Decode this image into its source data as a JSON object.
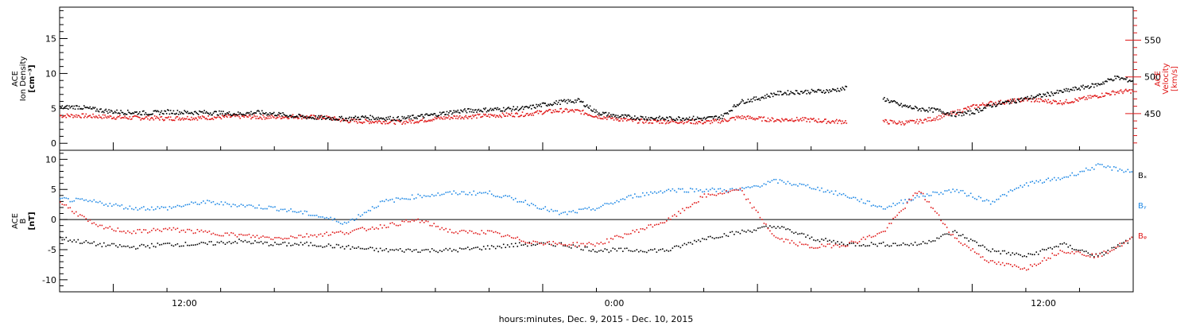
{
  "colors": {
    "bx": "#000000",
    "by": "#1e88e5",
    "bz": "#e01818",
    "density": "#000000",
    "velocity": "#e01818",
    "axes": "#000000"
  },
  "xlabel": "hours:minutes, Dec.  9, 2015 - Dec. 10, 2015",
  "x_tick_labels": [
    "12:00",
    "0:00",
    "12:00"
  ],
  "chart_data": [
    {
      "type": "scatter",
      "panel": "top",
      "left_ylabel": {
        "source": "ACE",
        "quantity": "Ion Density",
        "unit": "[cm⁻³]"
      },
      "right_ylabel": {
        "source": "ACE",
        "quantity": "Velocity",
        "unit": "[km/s]"
      },
      "x_range_hours": [
        0,
        60
      ],
      "left_ylim": [
        -1,
        19.5
      ],
      "left_ticks": [
        0,
        5,
        10,
        15
      ],
      "right_ylim": [
        400,
        595
      ],
      "right_ticks": [
        450,
        500,
        550
      ],
      "series": [
        {
          "name": "Density",
          "axis": "left",
          "color": "#000000",
          "x": [
            0,
            1,
            2,
            3,
            4,
            5,
            6,
            7,
            8,
            9,
            10,
            11,
            12,
            13,
            14,
            15,
            16,
            17,
            18,
            19,
            20,
            21,
            22,
            23,
            24,
            25,
            26,
            27,
            28,
            29,
            30,
            31,
            32,
            33,
            34,
            35,
            36,
            37,
            38,
            39,
            40,
            41,
            42,
            43,
            44,
            45,
            46,
            47,
            48,
            49,
            50,
            51,
            52,
            53,
            54,
            55,
            56,
            57,
            58,
            59,
            60
          ],
          "y": [
            5.2,
            5.3,
            4.9,
            4.6,
            4.5,
            4.4,
            4.6,
            4.5,
            4.5,
            4.4,
            4.3,
            4.5,
            4.3,
            4.0,
            3.8,
            3.7,
            3.6,
            3.8,
            3.7,
            3.6,
            3.9,
            4.2,
            4.6,
            4.8,
            4.9,
            5.0,
            5.1,
            5.6,
            6.0,
            6.2,
            4.5,
            4.0,
            3.8,
            3.7,
            3.6,
            3.7,
            3.6,
            3.9,
            6.0,
            6.5,
            7.2,
            7.4,
            7.5,
            7.6,
            8.0,
            null,
            6.5,
            5.5,
            5.0,
            4.8,
            4.2,
            4.5,
            5.5,
            6.0,
            6.5,
            7.0,
            7.5,
            8.0,
            8.5,
            9.5,
            9.0
          ]
        },
        {
          "name": "Velocity",
          "axis": "right",
          "color": "#e01818",
          "x": [
            0,
            1,
            2,
            3,
            4,
            5,
            6,
            7,
            8,
            9,
            10,
            11,
            12,
            13,
            14,
            15,
            16,
            17,
            18,
            19,
            20,
            21,
            22,
            23,
            24,
            25,
            26,
            27,
            28,
            29,
            30,
            31,
            32,
            33,
            34,
            35,
            36,
            37,
            38,
            39,
            40,
            41,
            42,
            43,
            44,
            45,
            46,
            47,
            48,
            49,
            50,
            51,
            52,
            53,
            54,
            55,
            56,
            57,
            58,
            59,
            60
          ],
          "y": [
            448,
            448,
            447,
            446,
            445,
            445,
            444,
            445,
            445,
            446,
            447,
            446,
            446,
            447,
            446,
            445,
            441,
            440,
            440,
            439,
            441,
            444,
            446,
            447,
            448,
            449,
            450,
            453,
            455,
            454,
            447,
            444,
            441,
            440,
            440,
            440,
            439,
            441,
            446,
            444,
            442,
            443,
            442,
            440,
            440,
            null,
            440,
            438,
            440,
            445,
            452,
            460,
            465,
            467,
            470,
            468,
            466,
            470,
            475,
            480,
            482
          ]
        }
      ]
    },
    {
      "type": "scatter",
      "panel": "bottom",
      "left_ylabel": {
        "source": "ACE",
        "quantity": "B",
        "unit": "[nT]"
      },
      "x_range_hours": [
        0,
        60
      ],
      "ylim": [
        -12,
        11.5
      ],
      "ticks": [
        -10,
        -5,
        0,
        5,
        10
      ],
      "zero_line": true,
      "legend": [
        "Bₓ",
        "Bᵧ",
        "Bᵩ"
      ],
      "series": [
        {
          "name": "Bx",
          "color": "#000000",
          "x": [
            0,
            2,
            4,
            6,
            8,
            10,
            12,
            14,
            16,
            18,
            20,
            22,
            24,
            26,
            28,
            30,
            32,
            34,
            36,
            38,
            40,
            42,
            44,
            46,
            48,
            50,
            52,
            54,
            56,
            58,
            60
          ],
          "y": [
            -3,
            -4,
            -4.5,
            -4,
            -4,
            -3.5,
            -4,
            -4,
            -4.5,
            -5,
            -5,
            -5,
            -4.5,
            -4,
            -4,
            -5,
            -5,
            -5,
            -3,
            -2,
            -1,
            -3,
            -4,
            -4,
            -4,
            -2,
            -5,
            -6,
            -4,
            -6,
            -3
          ]
        },
        {
          "name": "By",
          "color": "#1e88e5",
          "x": [
            0,
            2,
            4,
            6,
            8,
            10,
            12,
            14,
            16,
            18,
            20,
            22,
            24,
            26,
            28,
            30,
            32,
            34,
            36,
            38,
            40,
            42,
            44,
            46,
            48,
            50,
            52,
            54,
            56,
            58,
            60
          ],
          "y": [
            3.5,
            3,
            2,
            2,
            3,
            2.5,
            2,
            1,
            -0.5,
            3,
            4,
            4.5,
            4.5,
            3,
            1,
            2,
            4,
            5,
            5,
            5,
            6.5,
            5.5,
            4,
            2,
            4,
            5,
            3,
            6,
            7,
            9,
            8
          ]
        },
        {
          "name": "Bz",
          "color": "#e01818",
          "x": [
            0,
            2,
            4,
            6,
            8,
            10,
            12,
            14,
            16,
            18,
            20,
            22,
            24,
            26,
            28,
            30,
            32,
            34,
            36,
            38,
            40,
            42,
            44,
            46,
            48,
            50,
            52,
            54,
            56,
            58,
            60
          ],
          "y": [
            3,
            -1,
            -2,
            -1.5,
            -2,
            -2.5,
            -3,
            -2.5,
            -2,
            -1,
            0,
            -2,
            -2,
            -3.5,
            -4,
            -4,
            -2,
            0,
            4,
            5,
            -3,
            -4.5,
            -4,
            -2,
            5,
            -3,
            -7,
            -8,
            -5,
            -6,
            -3
          ]
        }
      ]
    }
  ]
}
